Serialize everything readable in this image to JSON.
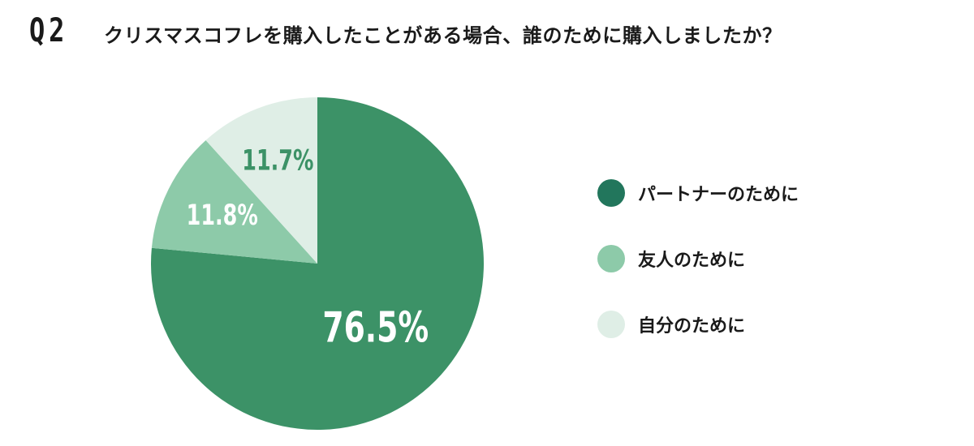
{
  "header": {
    "q_number": "Q2",
    "question": "クリスマスコフレを購入したことがある場合、誰のために購入しましたか？"
  },
  "chart_data": {
    "type": "pie",
    "title": "クリスマスコフレを購入したことがある場合、誰のために購入しましたか？",
    "start_angle": "12 o'clock",
    "direction": "clockwise",
    "slices": [
      {
        "name": "パートナーのために",
        "value": 76.5,
        "label": "76.5%",
        "color": "#3c9267",
        "legend_color": "#22765c",
        "label_color": "#ffffff"
      },
      {
        "name": "友人のために",
        "value": 11.8,
        "label": "11.8%",
        "color": "#8dcaa9",
        "legend_color": "#8dcaa9",
        "label_color": "#ffffff"
      },
      {
        "name": "自分のために",
        "value": 11.7,
        "label": "11.7%",
        "color": "#dfeee6",
        "legend_color": "#dfeee6",
        "label_color": "#3c9267"
      }
    ],
    "legend": {
      "position": "right",
      "items": [
        "パートナーのために",
        "友人のために",
        "自分のために"
      ]
    }
  }
}
